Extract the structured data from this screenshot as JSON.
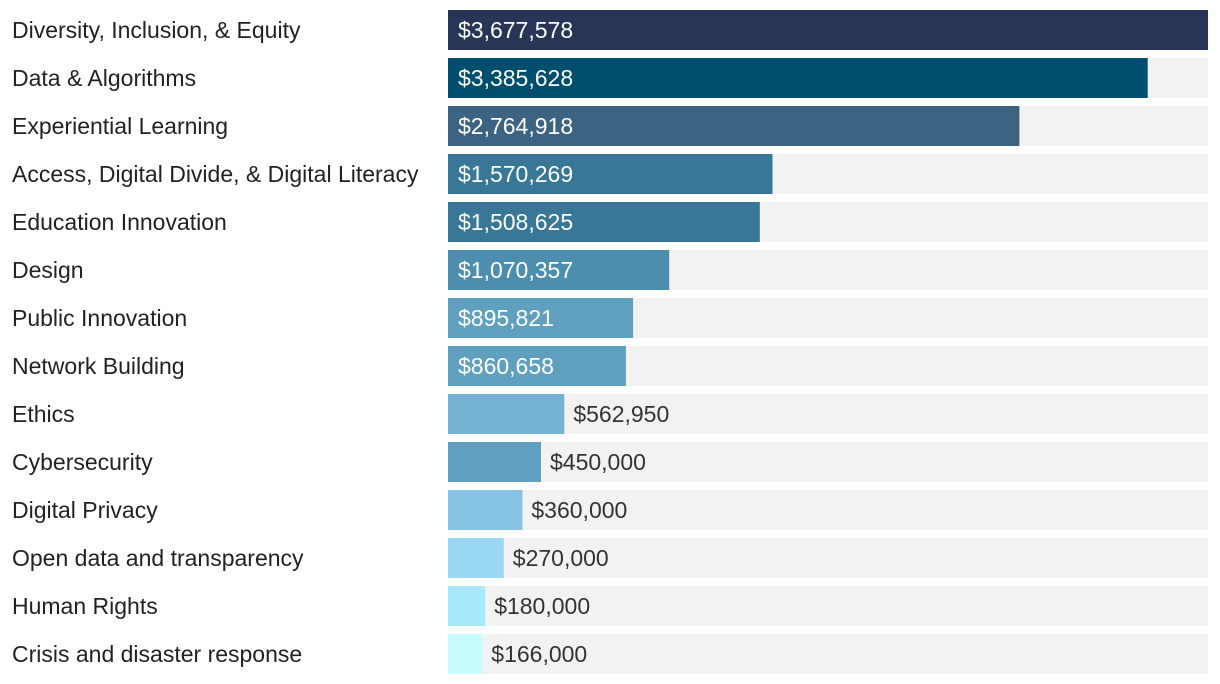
{
  "chart_data": {
    "type": "bar",
    "orientation": "horizontal",
    "xlim": [
      0,
      3677578
    ],
    "categories": [
      "Diversity, Inclusion, & Equity",
      "Data & Algorithms",
      "Experiential Learning",
      "Access, Digital Divide, & Digital Literacy",
      "Education Innovation",
      "Design",
      "Public Innovation",
      "Network Building",
      "Ethics",
      "Cybersecurity",
      "Digital Privacy",
      "Open data and transparency",
      "Human Rights",
      "Crisis and disaster response"
    ],
    "values": [
      3677578,
      3385628,
      2764918,
      1570269,
      1508625,
      1070357,
      895821,
      860658,
      562950,
      450000,
      360000,
      270000,
      180000,
      166000
    ],
    "value_labels": [
      "$3,677,578",
      "$3,385,628",
      "$2,764,918",
      "$1,570,269",
      "$1,508,625",
      "$1,070,357",
      "$895,821",
      "$860,658",
      "$562,950",
      "$450,000",
      "$360,000",
      "$270,000",
      "$180,000",
      "$166,000"
    ],
    "bar_colors": [
      "#283556",
      "#004e6d",
      "#3d6383",
      "#387896",
      "#387896",
      "#4d8eae",
      "#5fa0bf",
      "#5fa0bf",
      "#76b3d3",
      "#609fc0",
      "#87c3e3",
      "#9bd8f3",
      "#a8e8fb",
      "#c8fbfc"
    ],
    "track_color": "#f2f2f2",
    "label_inside_bar": [
      true,
      true,
      true,
      true,
      true,
      true,
      true,
      true,
      false,
      false,
      false,
      false,
      false,
      false
    ]
  }
}
